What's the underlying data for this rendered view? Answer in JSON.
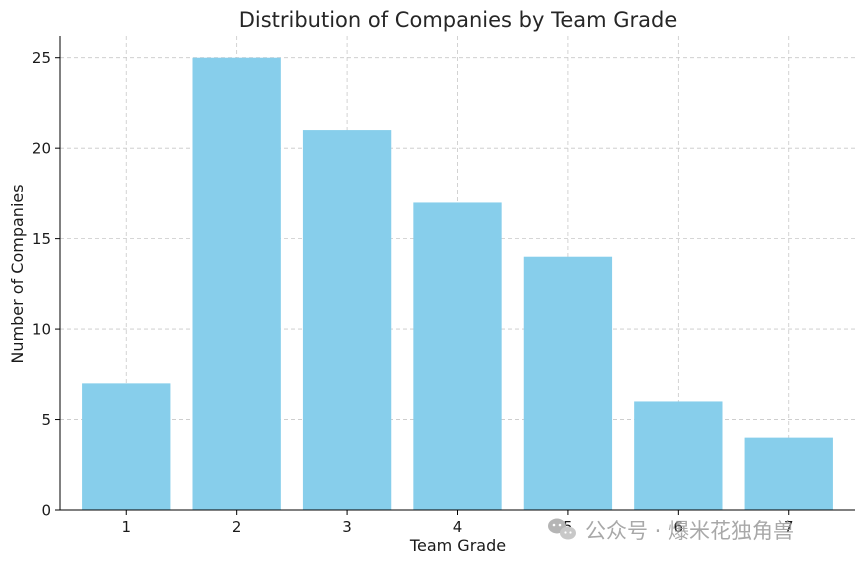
{
  "chart_data": {
    "type": "bar",
    "title": "Distribution of Companies by Team Grade",
    "xlabel": "Team Grade",
    "ylabel": "Number of Companies",
    "categories": [
      "1",
      "2",
      "3",
      "4",
      "5",
      "6",
      "7"
    ],
    "values": [
      7,
      25,
      21,
      17,
      14,
      6,
      4
    ],
    "ylim": [
      0,
      26.2
    ],
    "yticks": [
      0,
      5,
      10,
      15,
      20,
      25
    ],
    "grid": true,
    "bar_color": "#87CEEB"
  },
  "watermark": {
    "text": "公众号 · 爆米花独角兽"
  }
}
